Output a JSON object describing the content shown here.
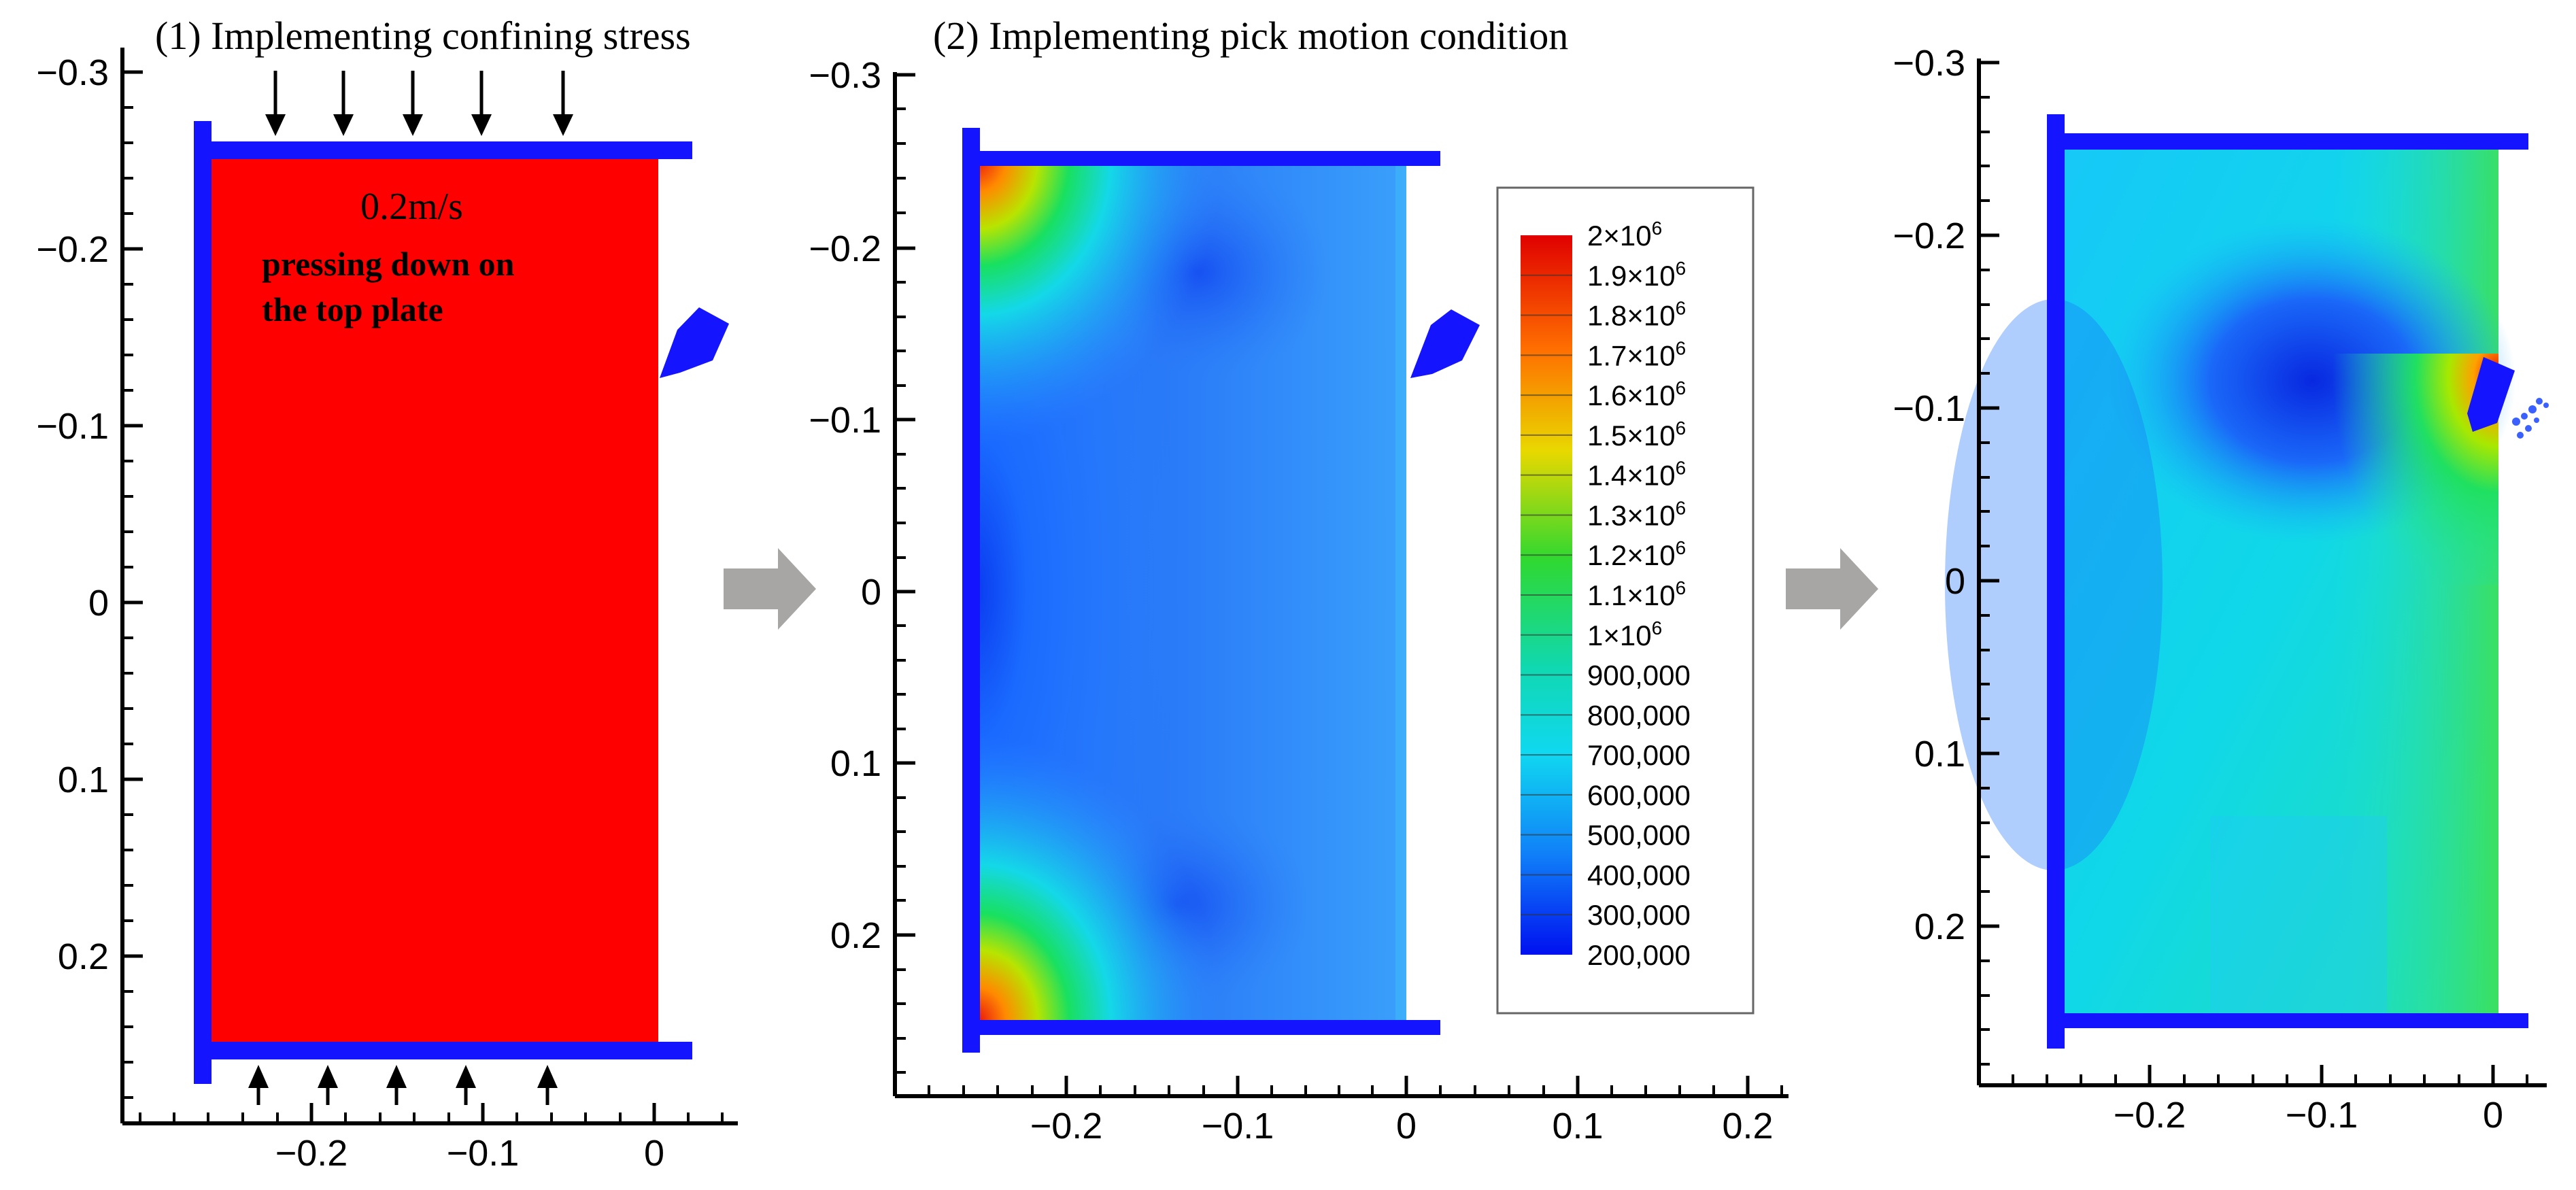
{
  "panels": [
    {
      "caption": "(1) Implementing confining stress",
      "y_ticks": [
        "−0.3",
        "−0.2",
        "−0.1",
        "0",
        "0.1",
        "0.2"
      ],
      "x_ticks": [
        "−0.2",
        "−0.1",
        "0"
      ],
      "speed_text": "0.2m/s",
      "note_line1": "pressing down on",
      "note_line2": "the top plate"
    },
    {
      "caption": "(2) Implementing pick motion condition",
      "y_ticks": [
        "−0.3",
        "−0.2",
        "−0.1",
        "0",
        "0.1",
        "0.2"
      ],
      "x_ticks": [
        "−0.2",
        "−0.1",
        "0",
        "0.1",
        "0.2"
      ]
    },
    {
      "caption": "",
      "y_ticks": [
        "−0.3",
        "−0.2",
        "−0.1",
        "0",
        "0.1",
        "0.2"
      ],
      "x_ticks": [
        "−0.2",
        "−0.1",
        "0"
      ]
    }
  ],
  "legend": {
    "entries": [
      {
        "base": "2×10",
        "exp": "6"
      },
      {
        "base": "1.9×10",
        "exp": "6"
      },
      {
        "base": "1.8×10",
        "exp": "6"
      },
      {
        "base": "1.7×10",
        "exp": "6"
      },
      {
        "base": "1.6×10",
        "exp": "6"
      },
      {
        "base": "1.5×10",
        "exp": "6"
      },
      {
        "base": "1.4×10",
        "exp": "6"
      },
      {
        "base": "1.3×10",
        "exp": "6"
      },
      {
        "base": "1.2×10",
        "exp": "6"
      },
      {
        "base": "1.1×10",
        "exp": "6"
      },
      {
        "base": "1×10",
        "exp": "6"
      },
      {
        "base": "900,000",
        "exp": ""
      },
      {
        "base": "800,000",
        "exp": ""
      },
      {
        "base": "700,000",
        "exp": ""
      },
      {
        "base": "600,000",
        "exp": ""
      },
      {
        "base": "500,000",
        "exp": ""
      },
      {
        "base": "400,000",
        "exp": ""
      },
      {
        "base": "300,000",
        "exp": ""
      },
      {
        "base": "200,000",
        "exp": ""
      }
    ]
  },
  "colors": {
    "plate": "#1414ff",
    "sample_confined": "#ff0000",
    "arrow": "#a8a6a4"
  }
}
